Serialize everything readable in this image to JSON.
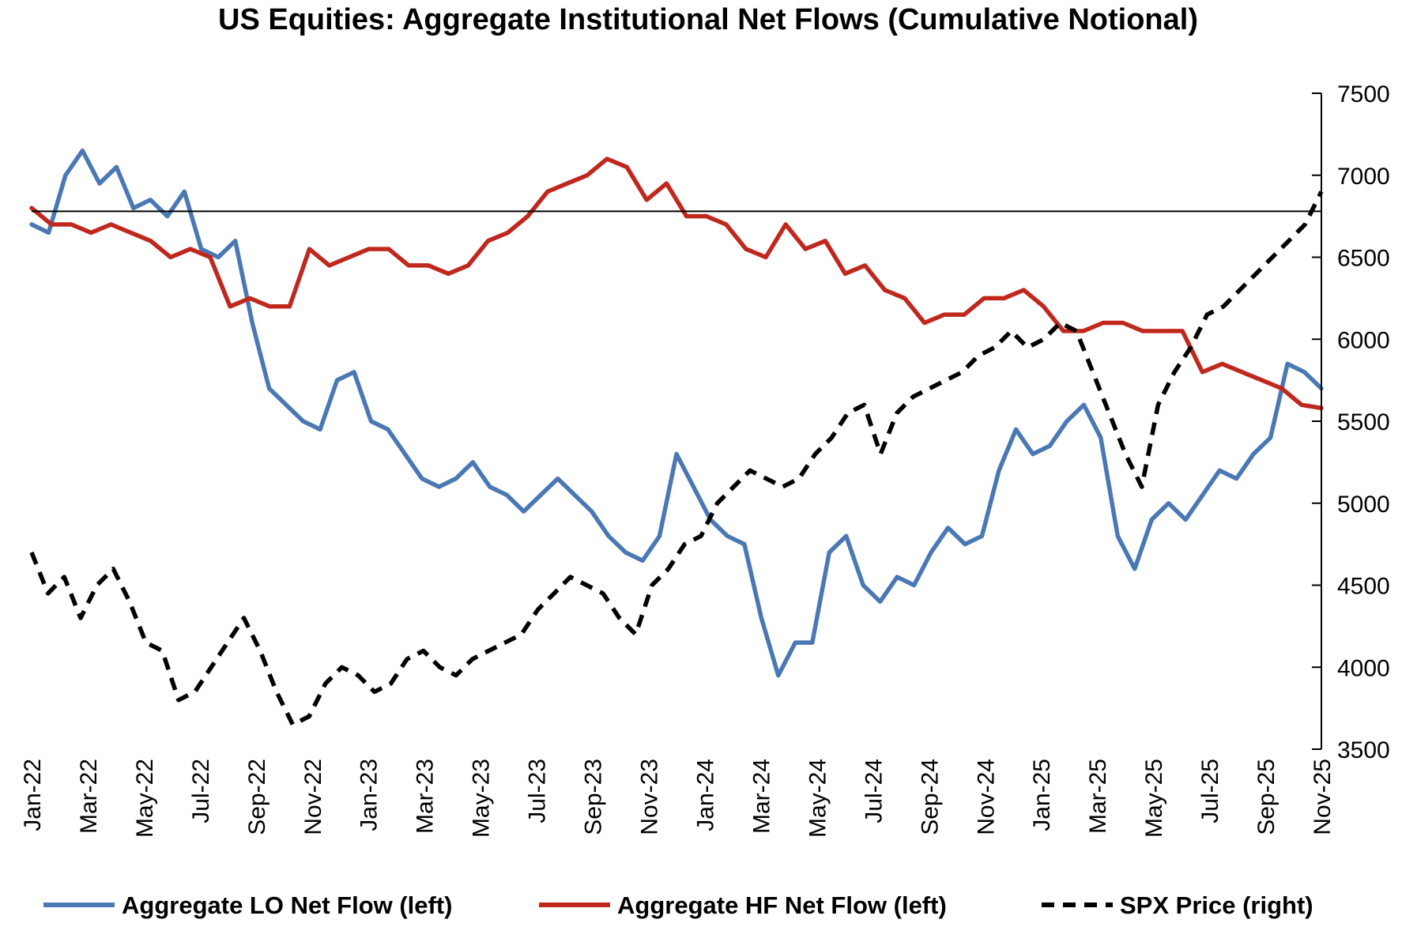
{
  "chart_data": {
    "type": "line",
    "title": "US Equities: Aggregate Institutional Net Flows (Cumulative Notional)",
    "xlabel": "",
    "ylabel": "",
    "y2label": "",
    "x_tick_labels": [
      "Jan-22",
      "Mar-22",
      "May-22",
      "Jul-22",
      "Sep-22",
      "Nov-22",
      "Jan-23",
      "Mar-23",
      "May-23",
      "Jul-23",
      "Sep-23",
      "Nov-23",
      "Jan-24",
      "Mar-24",
      "May-24",
      "Jul-24",
      "Sep-24",
      "Nov-24",
      "Jan-25",
      "Mar-25",
      "May-25",
      "Jul-25",
      "Sep-25",
      "Nov-25"
    ],
    "y2_ticks": [
      "3500",
      "4000",
      "4500",
      "5000",
      "5500",
      "6000",
      "6500",
      "7000",
      "7500"
    ],
    "y2lim": [
      3500,
      7500
    ],
    "left_axis_shown": false,
    "horizontal_reference_line": {
      "axis": "right",
      "value": 6780
    },
    "grid": false,
    "legend_position": "bottom",
    "series": [
      {
        "name": "Aggregate LO Net Flow (left)",
        "axis": "left",
        "color": "#4a78b4",
        "style": "solid",
        "values": [
          6700,
          6650,
          7000,
          7150,
          6950,
          7050,
          6800,
          6850,
          6750,
          6900,
          6550,
          6500,
          6600,
          6100,
          5700,
          5600,
          5500,
          5450,
          5750,
          5800,
          5500,
          5450,
          5300,
          5150,
          5100,
          5150,
          5250,
          5100,
          5050,
          4950,
          5050,
          5150,
          5050,
          4950,
          4800,
          4700,
          4650,
          4800,
          5300,
          5100,
          4900,
          4800,
          4750,
          4300,
          3950,
          4150,
          4150,
          4700,
          4800,
          4500,
          4400,
          4550,
          4500,
          4700,
          4850,
          4750,
          4800,
          5200,
          5450,
          5300,
          5350,
          5500,
          5600,
          5400,
          4800,
          4600,
          4900,
          5000,
          4900,
          5050,
          5200,
          5150,
          5300,
          5400,
          5850,
          5800,
          5700
        ]
      },
      {
        "name": "Aggregate HF Net Flow (left)",
        "axis": "left",
        "color": "#c0281e",
        "style": "solid",
        "values": [
          6800,
          6700,
          6700,
          6650,
          6700,
          6650,
          6600,
          6500,
          6550,
          6500,
          6200,
          6250,
          6200,
          6200,
          6550,
          6450,
          6500,
          6550,
          6550,
          6450,
          6450,
          6400,
          6450,
          6600,
          6650,
          6750,
          6900,
          6950,
          7000,
          7100,
          7050,
          6850,
          6950,
          6750,
          6750,
          6700,
          6550,
          6500,
          6700,
          6550,
          6600,
          6400,
          6450,
          6300,
          6250,
          6100,
          6150,
          6150,
          6250,
          6250,
          6300,
          6200,
          6050,
          6050,
          6100,
          6100,
          6050,
          6050,
          6050,
          5800,
          5850,
          5800,
          5750,
          5700,
          5600,
          5580
        ]
      },
      {
        "name": "SPX Price (right)",
        "axis": "right",
        "color": "#000000",
        "style": "dashed",
        "values": [
          4700,
          4450,
          4550,
          4300,
          4500,
          4600,
          4400,
          4150,
          4100,
          3800,
          3850,
          4000,
          4150,
          4300,
          4100,
          3850,
          3650,
          3700,
          3900,
          4000,
          3950,
          3850,
          3900,
          4050,
          4100,
          4000,
          3950,
          4050,
          4100,
          4150,
          4200,
          4350,
          4450,
          4550,
          4500,
          4450,
          4300,
          4200,
          4500,
          4600,
          4750,
          4800,
          5000,
          5100,
          5200,
          5150,
          5100,
          5150,
          5300,
          5400,
          5550,
          5600,
          5300,
          5550,
          5650,
          5700,
          5750,
          5800,
          5900,
          5950,
          6050,
          5950,
          6000,
          6100,
          6050,
          5800,
          5550,
          5300,
          5100,
          5600,
          5800,
          5950,
          6150,
          6200,
          6300,
          6400,
          6500,
          6600,
          6700,
          6900
        ]
      }
    ]
  }
}
